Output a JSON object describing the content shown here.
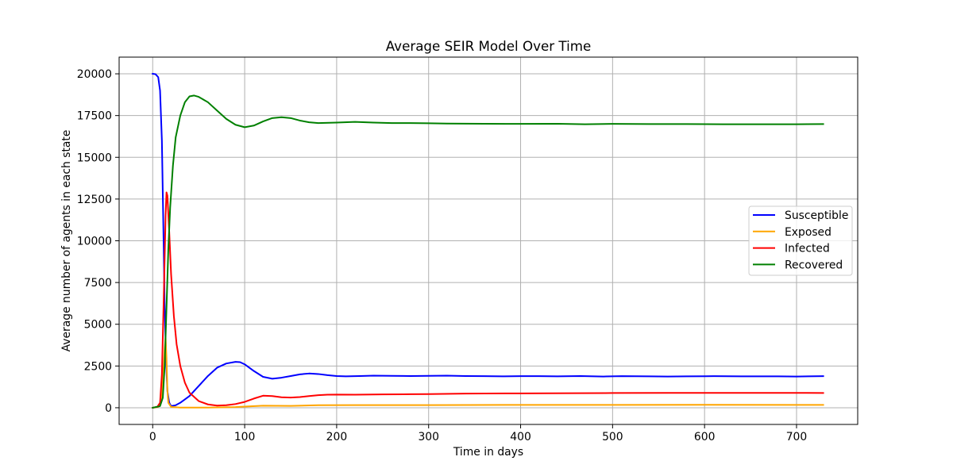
{
  "chart_data": {
    "type": "line",
    "title": "Average SEIR Model Over Time",
    "xlabel": "Time in days",
    "ylabel": "Average number of agents in each state",
    "xlim": [
      -36.5,
      766.5
    ],
    "ylim": [
      -1000,
      21000
    ],
    "xticks": [
      0,
      100,
      200,
      300,
      400,
      500,
      600,
      700
    ],
    "yticks": [
      0,
      2500,
      5000,
      7500,
      10000,
      12500,
      15000,
      17500,
      20000
    ],
    "grid": true,
    "legend_position": "center-right",
    "series": [
      {
        "name": "Susceptible",
        "color": "#0000ff",
        "points": [
          [
            0,
            20000
          ],
          [
            3,
            19980
          ],
          [
            6,
            19800
          ],
          [
            8,
            19000
          ],
          [
            10,
            16000
          ],
          [
            12,
            9500
          ],
          [
            13,
            6000
          ],
          [
            14,
            4000
          ],
          [
            15,
            2200
          ],
          [
            16,
            1000
          ],
          [
            18,
            300
          ],
          [
            20,
            100
          ],
          [
            25,
            150
          ],
          [
            30,
            300
          ],
          [
            40,
            700
          ],
          [
            50,
            1300
          ],
          [
            60,
            1900
          ],
          [
            70,
            2400
          ],
          [
            80,
            2650
          ],
          [
            90,
            2750
          ],
          [
            95,
            2730
          ],
          [
            100,
            2600
          ],
          [
            110,
            2200
          ],
          [
            120,
            1850
          ],
          [
            130,
            1740
          ],
          [
            140,
            1800
          ],
          [
            150,
            1900
          ],
          [
            160,
            2000
          ],
          [
            170,
            2050
          ],
          [
            180,
            2020
          ],
          [
            190,
            1950
          ],
          [
            200,
            1900
          ],
          [
            210,
            1880
          ],
          [
            225,
            1900
          ],
          [
            240,
            1920
          ],
          [
            260,
            1910
          ],
          [
            280,
            1900
          ],
          [
            300,
            1910
          ],
          [
            320,
            1920
          ],
          [
            340,
            1900
          ],
          [
            360,
            1890
          ],
          [
            380,
            1880
          ],
          [
            400,
            1890
          ],
          [
            420,
            1890
          ],
          [
            440,
            1880
          ],
          [
            465,
            1900
          ],
          [
            490,
            1870
          ],
          [
            510,
            1890
          ],
          [
            540,
            1880
          ],
          [
            560,
            1870
          ],
          [
            580,
            1880
          ],
          [
            610,
            1890
          ],
          [
            640,
            1880
          ],
          [
            680,
            1880
          ],
          [
            700,
            1870
          ],
          [
            729,
            1890
          ]
        ]
      },
      {
        "name": "Exposed",
        "color": "#ffa500",
        "points": [
          [
            0,
            0
          ],
          [
            6,
            50
          ],
          [
            9,
            300
          ],
          [
            11,
            1500
          ],
          [
            13,
            3500
          ],
          [
            14,
            4200
          ],
          [
            15,
            3000
          ],
          [
            16,
            1000
          ],
          [
            17,
            300
          ],
          [
            20,
            50
          ],
          [
            30,
            10
          ],
          [
            60,
            10
          ],
          [
            90,
            40
          ],
          [
            100,
            70
          ],
          [
            120,
            120
          ],
          [
            150,
            110
          ],
          [
            180,
            150
          ],
          [
            220,
            160
          ],
          [
            300,
            160
          ],
          [
            400,
            170
          ],
          [
            500,
            170
          ],
          [
            600,
            175
          ],
          [
            700,
            170
          ],
          [
            729,
            170
          ]
        ]
      },
      {
        "name": "Infected",
        "color": "#ff0000",
        "points": [
          [
            0,
            0
          ],
          [
            5,
            50
          ],
          [
            8,
            300
          ],
          [
            10,
            2000
          ],
          [
            12,
            6500
          ],
          [
            14,
            11500
          ],
          [
            15,
            12900
          ],
          [
            16,
            12700
          ],
          [
            18,
            10500
          ],
          [
            20,
            8000
          ],
          [
            23,
            5500
          ],
          [
            26,
            3800
          ],
          [
            30,
            2500
          ],
          [
            35,
            1500
          ],
          [
            40,
            900
          ],
          [
            50,
            400
          ],
          [
            60,
            200
          ],
          [
            70,
            130
          ],
          [
            80,
            150
          ],
          [
            90,
            220
          ],
          [
            100,
            350
          ],
          [
            110,
            550
          ],
          [
            120,
            720
          ],
          [
            130,
            700
          ],
          [
            140,
            630
          ],
          [
            150,
            610
          ],
          [
            160,
            640
          ],
          [
            170,
            700
          ],
          [
            180,
            750
          ],
          [
            190,
            780
          ],
          [
            200,
            790
          ],
          [
            220,
            780
          ],
          [
            250,
            800
          ],
          [
            280,
            810
          ],
          [
            300,
            820
          ],
          [
            340,
            850
          ],
          [
            400,
            860
          ],
          [
            460,
            870
          ],
          [
            500,
            880
          ],
          [
            560,
            890
          ],
          [
            600,
            890
          ],
          [
            650,
            890
          ],
          [
            700,
            890
          ],
          [
            729,
            880
          ]
        ]
      },
      {
        "name": "Recovered",
        "color": "#008000",
        "points": [
          [
            0,
            0
          ],
          [
            8,
            100
          ],
          [
            11,
            600
          ],
          [
            13,
            2500
          ],
          [
            15,
            6000
          ],
          [
            17,
            9500
          ],
          [
            19,
            12000
          ],
          [
            22,
            14500
          ],
          [
            25,
            16200
          ],
          [
            30,
            17500
          ],
          [
            35,
            18300
          ],
          [
            40,
            18650
          ],
          [
            45,
            18700
          ],
          [
            50,
            18620
          ],
          [
            60,
            18300
          ],
          [
            70,
            17800
          ],
          [
            80,
            17300
          ],
          [
            90,
            16950
          ],
          [
            100,
            16800
          ],
          [
            110,
            16900
          ],
          [
            120,
            17150
          ],
          [
            130,
            17350
          ],
          [
            140,
            17400
          ],
          [
            150,
            17350
          ],
          [
            160,
            17200
          ],
          [
            170,
            17100
          ],
          [
            180,
            17050
          ],
          [
            200,
            17080
          ],
          [
            220,
            17120
          ],
          [
            240,
            17080
          ],
          [
            260,
            17050
          ],
          [
            280,
            17050
          ],
          [
            300,
            17040
          ],
          [
            320,
            17020
          ],
          [
            360,
            17010
          ],
          [
            400,
            17000
          ],
          [
            440,
            17010
          ],
          [
            470,
            16980
          ],
          [
            500,
            17000
          ],
          [
            540,
            16990
          ],
          [
            580,
            16990
          ],
          [
            620,
            16980
          ],
          [
            660,
            16980
          ],
          [
            700,
            16980
          ],
          [
            729,
            16990
          ]
        ]
      }
    ]
  }
}
